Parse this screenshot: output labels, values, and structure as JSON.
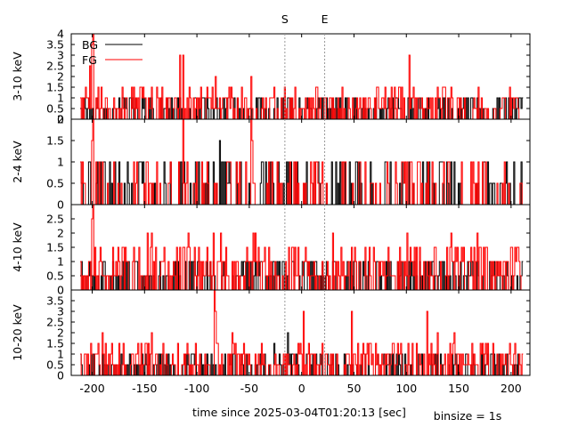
{
  "figure": {
    "xlabel": "time since 2025-03-04T01:20:13 [sec]",
    "binsize_note": "binsize = 1s",
    "markers": [
      {
        "label": "S",
        "t": -16
      },
      {
        "label": "E",
        "t": 22
      }
    ],
    "legend": [
      {
        "name": "BG",
        "color": "#000000"
      },
      {
        "name": "FG",
        "color": "#ff0000"
      }
    ]
  },
  "chart_data": {
    "type": "line",
    "x_range": [
      -220,
      218
    ],
    "xticks": [
      -200,
      -150,
      -100,
      -50,
      0,
      50,
      100,
      150,
      200
    ],
    "grid": false,
    "legend_placement": "top-left of first panel",
    "panels": [
      {
        "ylabel": "3-10 keV",
        "ylim": [
          0,
          4
        ],
        "yticks": [
          0,
          0.5,
          1,
          1.5,
          2,
          2.5,
          3,
          3.5,
          4
        ],
        "series": [
          {
            "name": "BG",
            "color": "#000000",
            "seed": 11,
            "mode": "low"
          },
          {
            "name": "FG",
            "color": "#ff0000",
            "seed": 23,
            "mode": "mid",
            "peaks": [
              [
                -199,
                4
              ],
              [
                -200,
                3.5
              ],
              [
                -202,
                2.5
              ],
              [
                -116,
                3
              ],
              [
                -113,
                3
              ],
              [
                -82,
                2
              ],
              [
                -48,
                2
              ],
              [
                103,
                3
              ]
            ]
          }
        ]
      },
      {
        "ylabel": "2-4 keV",
        "ylim": [
          0,
          2
        ],
        "yticks": [
          0,
          0.5,
          1,
          1.5,
          2
        ],
        "series": [
          {
            "name": "BG",
            "color": "#000000",
            "seed": 37,
            "mode": "sparse",
            "peaks": [
              [
                -78,
                1.5
              ]
            ]
          },
          {
            "name": "FG",
            "color": "#ff0000",
            "seed": 41,
            "mode": "sparse",
            "peaks": [
              [
                -200,
                1.5
              ],
              [
                -199,
                2
              ],
              [
                -113,
                2
              ],
              [
                -48,
                2
              ],
              [
                -47,
                1.5
              ]
            ]
          }
        ]
      },
      {
        "ylabel": "4-10 keV",
        "ylim": [
          0,
          3
        ],
        "yticks": [
          0,
          0.5,
          1,
          1.5,
          2,
          2.5
        ],
        "series": [
          {
            "name": "BG",
            "color": "#000000",
            "seed": 53,
            "mode": "low"
          },
          {
            "name": "FG",
            "color": "#ff0000",
            "seed": 67,
            "mode": "mid",
            "peaks": [
              [
                -199,
                3
              ],
              [
                -200,
                2.5
              ],
              [
                -147,
                2
              ],
              [
                -143,
                2
              ],
              [
                -108,
                2
              ],
              [
                -84,
                2
              ],
              [
                -77,
                2
              ],
              [
                -46,
                2
              ],
              [
                -44,
                2
              ],
              [
                30,
                2
              ],
              [
                101,
                2
              ],
              [
                143,
                2
              ],
              [
                168,
                2
              ]
            ]
          }
        ]
      },
      {
        "ylabel": "10-20 keV",
        "ylim": [
          0,
          4
        ],
        "yticks": [
          0,
          0.5,
          1,
          1.5,
          2,
          2.5,
          3,
          3.5
        ],
        "series": [
          {
            "name": "BG",
            "color": "#000000",
            "seed": 71,
            "mode": "low",
            "peaks": [
              [
                -26,
                1.5
              ],
              [
                -13,
                2
              ]
            ]
          },
          {
            "name": "FG",
            "color": "#ff0000",
            "seed": 89,
            "mode": "mid",
            "peaks": [
              [
                -83,
                4
              ],
              [
                -82,
                3
              ],
              [
                -190,
                2
              ],
              [
                -143,
                2
              ],
              [
                -66,
                2
              ],
              [
                2,
                3
              ],
              [
                48,
                3
              ],
              [
                120,
                3
              ],
              [
                130,
                2
              ],
              [
                146,
                2
              ]
            ]
          }
        ]
      }
    ]
  }
}
